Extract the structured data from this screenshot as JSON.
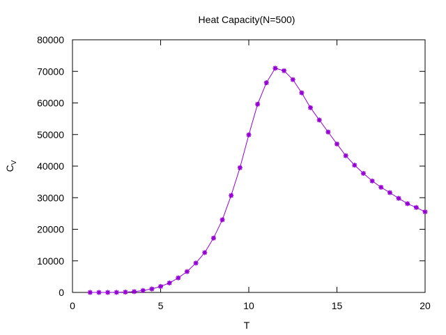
{
  "chart_data": {
    "type": "line",
    "title": "Heat Capacity(N=500)",
    "xlabel": "T",
    "ylabel": "C",
    "ylabel_subscript": "V",
    "xlim": [
      0,
      20
    ],
    "ylim": [
      0,
      80000
    ],
    "xticks": [
      0,
      5,
      10,
      15,
      20
    ],
    "yticks": [
      0,
      10000,
      20000,
      30000,
      40000,
      50000,
      60000,
      70000,
      80000
    ],
    "grid": false,
    "legend": "none",
    "series": [
      {
        "color": "#9400d3",
        "marker": "star",
        "x": [
          1,
          1.5,
          2,
          2.5,
          3,
          3.5,
          4,
          4.5,
          5,
          5.5,
          6,
          6.5,
          7,
          7.5,
          8,
          8.5,
          9,
          9.5,
          10,
          10.5,
          11,
          11.5,
          12,
          12.5,
          13,
          13.5,
          14,
          14.5,
          15,
          15.5,
          16,
          16.5,
          17,
          17.5,
          18,
          18.5,
          19,
          19.5,
          20
        ],
        "y": [
          0,
          0,
          0,
          20,
          100,
          250,
          600,
          1100,
          1900,
          3000,
          4600,
          6600,
          9300,
          12600,
          17200,
          23000,
          30700,
          39500,
          49900,
          59600,
          66400,
          71000,
          70200,
          67400,
          63200,
          58500,
          54600,
          50800,
          47000,
          43300,
          40300,
          37700,
          35300,
          33300,
          31600,
          29800,
          28100,
          26900,
          25500
        ]
      }
    ]
  }
}
